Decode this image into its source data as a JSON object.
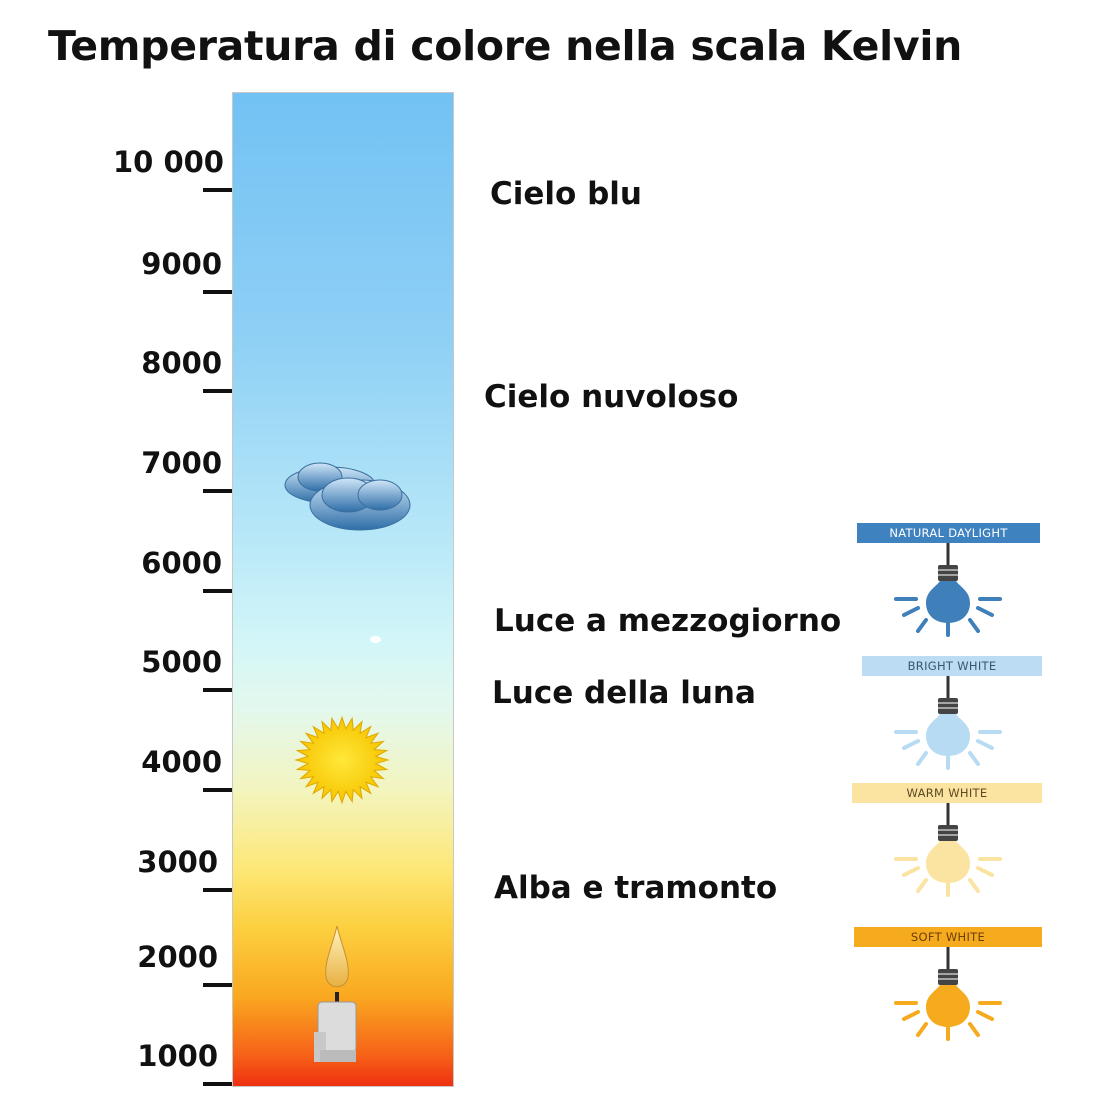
{
  "title": "Temperatura di colore nella scala Kelvin",
  "scale": {
    "ticks": [
      "10 000",
      "9000",
      "8000",
      "7000",
      "6000",
      "5000",
      "4000",
      "3000",
      "2000",
      "1000"
    ]
  },
  "descriptions": [
    "Cielo blu",
    "Cielo nuvoloso",
    "Luce a mezzogiorno",
    "Luce della luna",
    "Alba e tramonto"
  ],
  "bulbs": [
    {
      "label": "NATURAL DAYLIGHT",
      "band_color": "#3f82c0",
      "bulb_color": "#3f7fba",
      "text_color": "#ffffff"
    },
    {
      "label": "BRIGHT WHITE",
      "band_color": "#bbdcf3",
      "bulb_color": "#b7dbf3",
      "text_color": "#3a5570"
    },
    {
      "label": "WARM WHITE",
      "band_color": "#fbe3a2",
      "bulb_color": "#fbe3a2",
      "text_color": "#5e4a22"
    },
    {
      "label": "SOFT WHITE",
      "band_color": "#f6aa1e",
      "bulb_color": "#f6aa1e",
      "text_color": "#6a3e0a"
    }
  ]
}
